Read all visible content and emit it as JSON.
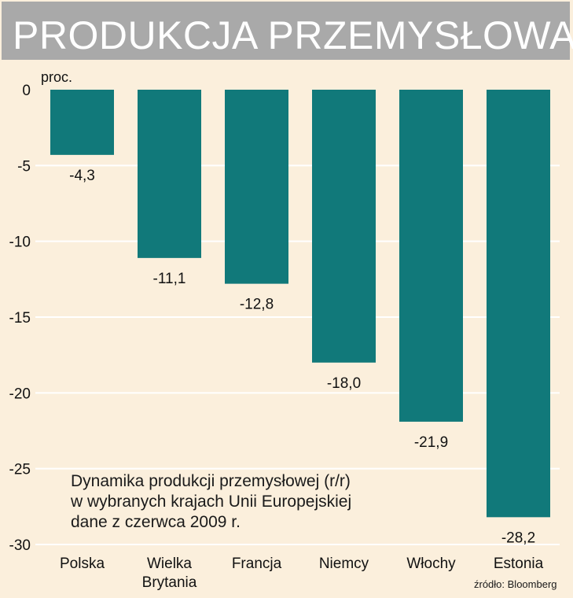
{
  "title": "PRODUKCJA PRZEMYSŁOWA",
  "note": {
    "lines": [
      "Dynamika produkcji przemysłowej (r/r)",
      "w wybranych krajach Unii Europejskiej",
      "dane z czerwca 2009 r."
    ]
  },
  "source": "źródło: Bloomberg",
  "colors": {
    "bar": "#11797a",
    "background": "#fbefdc",
    "title_bar": "#a9a9a9",
    "gridline": "#ffffff"
  },
  "chart_data": {
    "type": "bar",
    "categories": [
      [
        "Polska"
      ],
      [
        "Wielka",
        "Brytania"
      ],
      [
        "Francja"
      ],
      [
        "Niemcy"
      ],
      [
        "Włochy"
      ],
      [
        "Estonia"
      ]
    ],
    "values": [
      -4.3,
      -11.1,
      -12.8,
      -18.0,
      -21.9,
      -28.2
    ],
    "value_labels": [
      "-4,3",
      "-11,1",
      "-12,8",
      "-18,0",
      "-21,9",
      "-28,2"
    ],
    "ylabel": "proc.",
    "ylim": [
      -30,
      0
    ],
    "yticks": [
      0,
      -5,
      -10,
      -15,
      -20,
      -25,
      -30
    ],
    "grid": true
  }
}
